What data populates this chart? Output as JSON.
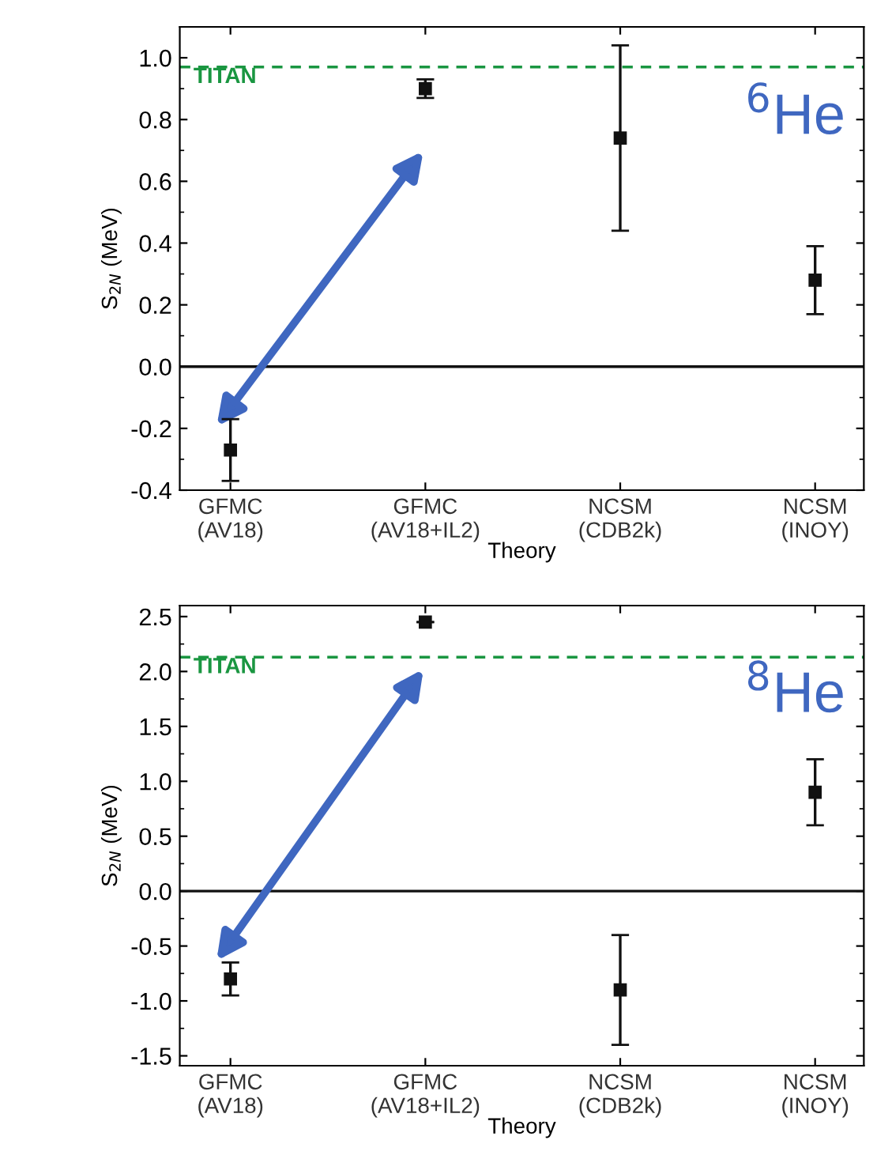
{
  "chart_data": [
    {
      "type": "scatter",
      "categories": [
        "GFMC\n(AV18)",
        "GFMC\n(AV18+IL2)",
        "NCSM\n(CDB2k)",
        "NCSM\n(INOY)"
      ],
      "series": [
        {
          "color": "#111111",
          "values": [
            -0.27,
            0.9,
            0.74,
            0.28
          ],
          "errors": [
            0.1,
            0.03,
            0.3,
            0.11
          ]
        }
      ],
      "marker": "square",
      "xlabel": "Theory",
      "ylabel": "S$_{2N}$ (MeV)",
      "ylim": [
        -0.4,
        1.1
      ],
      "yticks": [
        -0.4,
        -0.2,
        {
          "value": 0,
          "label": "0.0"
        },
        0.2,
        0.4,
        0.6,
        0.8,
        {
          "value": 1,
          "label": "1.0"
        }
      ],
      "ref_lines": [
        {
          "axis": "y",
          "value": 0.97,
          "label": "TITAN",
          "color": "#1a9641",
          "line_style": "dashed"
        },
        {
          "axis": "y",
          "value": 0,
          "label": null,
          "color": "#111111",
          "line_style": "solid"
        }
      ],
      "annotations": [
        "$^{6}$He"
      ],
      "grid": false,
      "legend": false
    },
    {
      "type": "scatter",
      "categories": [
        "GFMC\n(AV18)",
        "GFMC\n(AV18+IL2)",
        "NCSM\n(CDB2k)",
        "NCSM\n(INOY)"
      ],
      "series": [
        {
          "color": "#111111",
          "values": [
            -0.8,
            2.45,
            -0.9,
            0.9
          ],
          "errors": [
            0.15,
            null,
            0.5,
            0.3
          ]
        }
      ],
      "marker": "square",
      "xlabel": "Theory",
      "ylabel": "S$_{2N}$ (MeV)",
      "ylim": [
        -1.59,
        2.6
      ],
      "yticks": [
        -1.5,
        {
          "value": -1,
          "label": "-1.0"
        },
        -0.5,
        {
          "value": 0,
          "label": "0.0"
        },
        0.5,
        {
          "value": 1,
          "label": "1.0"
        },
        1.5,
        {
          "value": 2,
          "label": "2.0"
        },
        2.5
      ],
      "ref_lines": [
        {
          "axis": "y",
          "value": 2.13,
          "label": "TITAN",
          "color": "#1a9641",
          "line_style": "dashed"
        },
        {
          "axis": "y",
          "value": 0,
          "label": null,
          "color": "#111111",
          "line_style": "solid"
        }
      ],
      "annotations": [
        "$^{8}$He"
      ],
      "grid": false,
      "legend": false
    }
  ]
}
